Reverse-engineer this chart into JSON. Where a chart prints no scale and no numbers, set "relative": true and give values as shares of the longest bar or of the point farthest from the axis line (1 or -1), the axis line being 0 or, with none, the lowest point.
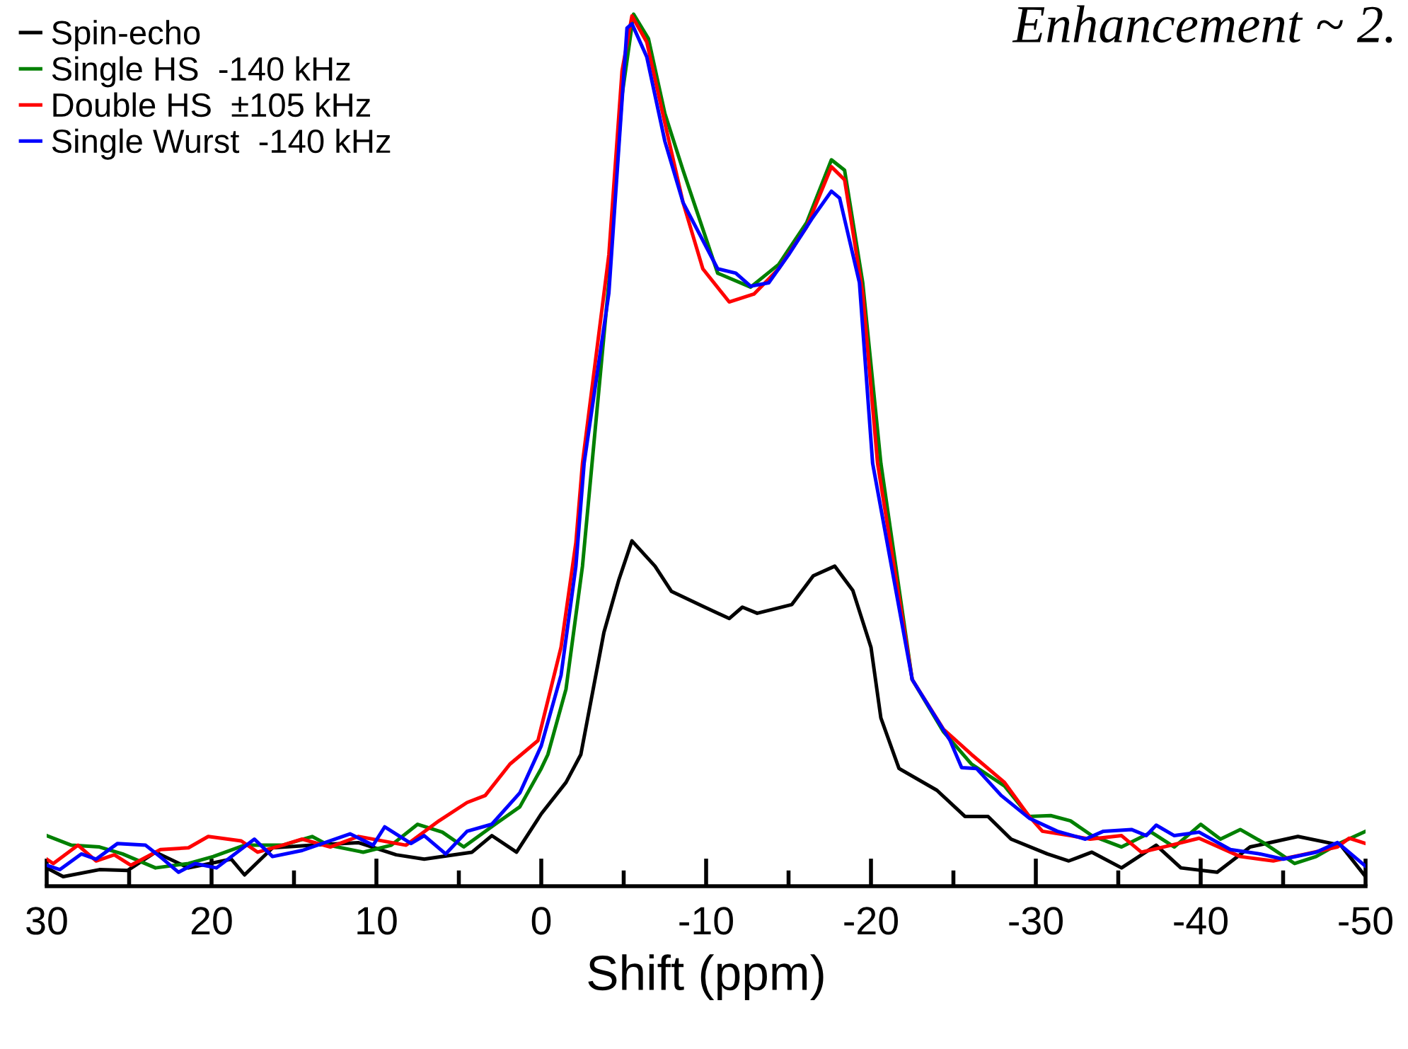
{
  "chart_data": {
    "type": "line",
    "relative": true,
    "xlabel": "Shift (ppm)",
    "annotations": [
      "Enhancement ~ 2."
    ],
    "xlim": [
      30,
      -50
    ],
    "xticks": [
      30,
      {
        "value": 25,
        "label": null
      },
      20,
      {
        "value": 15,
        "label": null
      },
      10,
      {
        "value": 5,
        "label": null
      },
      0,
      {
        "value": -5,
        "label": null
      },
      -10,
      {
        "value": -15,
        "label": null
      },
      -20,
      {
        "value": -25,
        "label": null
      },
      -30,
      {
        "value": -35,
        "label": null
      },
      -40,
      {
        "value": -45,
        "label": null
      },
      -50
    ],
    "legend": "top left",
    "grid": false,
    "marker": "none",
    "line_style": "solid",
    "series": [
      {
        "name": "Spin-echo",
        "color": "#000000",
        "x": [
          30,
          29.0,
          26.8,
          25.1,
          23.4,
          21.4,
          18.8,
          18.0,
          16.3,
          13.9,
          11.1,
          8.8,
          7.1,
          4.2,
          3.0,
          1.5,
          0.0,
          -1.5,
          -2.4,
          -3.8,
          -4.7,
          -5.5,
          -6.9,
          -7.9,
          -9.8,
          -11.4,
          -12.2,
          -13.1,
          -15.2,
          -16.5,
          -17.8,
          -18.9,
          -20.0,
          -20.6,
          -21.7,
          -24.0,
          -25.7,
          -27.1,
          -28.5,
          -30.7,
          -32.0,
          -33.4,
          -35.2,
          -37.3,
          -38.8,
          -41.0,
          -43.0,
          -45.9,
          -48.5,
          -50
        ],
        "values": [
          0.021,
          0.011,
          0.019,
          0.018,
          0.039,
          0.021,
          0.031,
          0.013,
          0.044,
          0.047,
          0.05,
          0.036,
          0.031,
          0.039,
          0.058,
          0.039,
          0.083,
          0.119,
          0.151,
          0.291,
          0.351,
          0.396,
          0.367,
          0.338,
          0.321,
          0.307,
          0.32,
          0.313,
          0.323,
          0.356,
          0.367,
          0.339,
          0.274,
          0.193,
          0.135,
          0.11,
          0.08,
          0.08,
          0.054,
          0.037,
          0.029,
          0.039,
          0.021,
          0.047,
          0.021,
          0.016,
          0.045,
          0.057,
          0.047,
          0.011
        ]
      },
      {
        "name": "Single HS  -140 kHz",
        "color": "#008000",
        "x": [
          30,
          28.5,
          26.8,
          25.4,
          23.4,
          21.4,
          19.9,
          18.0,
          15.7,
          13.9,
          12.9,
          10.8,
          9.1,
          7.5,
          6.0,
          4.7,
          2.8,
          1.3,
          0.0,
          -0.4,
          -1.5,
          -2.5,
          -4.1,
          -4.9,
          -5.6,
          -6.5,
          -7.5,
          -8.6,
          -10.7,
          -12.7,
          -14.4,
          -16.1,
          -17.6,
          -18.4,
          -19.5,
          -20.6,
          -22.5,
          -24.4,
          -26.1,
          -28.1,
          -29.6,
          -30.9,
          -32.1,
          -33.4,
          -35.2,
          -37.0,
          -38.4,
          -40.0,
          -41.2,
          -42.4,
          -43.8,
          -45.7,
          -47.0,
          -48.5,
          -50
        ],
        "values": [
          0.058,
          0.047,
          0.045,
          0.037,
          0.021,
          0.026,
          0.034,
          0.047,
          0.047,
          0.057,
          0.047,
          0.039,
          0.047,
          0.071,
          0.062,
          0.045,
          0.071,
          0.091,
          0.135,
          0.151,
          0.226,
          0.367,
          0.692,
          0.907,
          1.0,
          0.972,
          0.886,
          0.821,
          0.703,
          0.687,
          0.713,
          0.761,
          0.833,
          0.821,
          0.692,
          0.485,
          0.237,
          0.177,
          0.14,
          0.115,
          0.08,
          0.081,
          0.075,
          0.058,
          0.045,
          0.062,
          0.045,
          0.071,
          0.054,
          0.065,
          0.05,
          0.026,
          0.034,
          0.05,
          0.063
        ]
      },
      {
        "name": "Double HS  ±105 kHz",
        "color": "#ff0000",
        "x": [
          30,
          29.6,
          28.1,
          27.0,
          25.9,
          24.9,
          23.1,
          21.4,
          20.2,
          18.2,
          17.2,
          15.7,
          14.5,
          12.8,
          11.1,
          8.2,
          6.2,
          4.5,
          3.4,
          1.9,
          0.2,
          -1.2,
          -2.1,
          -2.5,
          -4.1,
          -4.9,
          -5.5,
          -6.4,
          -7.5,
          -8.6,
          -9.8,
          -11.4,
          -12.9,
          -14.4,
          -16.1,
          -17.6,
          -18.4,
          -19.5,
          -20.4,
          -22.5,
          -24.4,
          -26.1,
          -28.1,
          -29.6,
          -30.4,
          -32.1,
          -33.3,
          -35.2,
          -36.4,
          -38.2,
          -39.9,
          -42.4,
          -44.4,
          -46.4,
          -48.3,
          -49.0,
          -50
        ],
        "values": [
          0.031,
          0.026,
          0.047,
          0.029,
          0.036,
          0.024,
          0.042,
          0.044,
          0.057,
          0.052,
          0.039,
          0.047,
          0.054,
          0.045,
          0.057,
          0.047,
          0.075,
          0.096,
          0.104,
          0.14,
          0.167,
          0.274,
          0.394,
          0.485,
          0.724,
          0.935,
          0.998,
          0.968,
          0.875,
          0.784,
          0.708,
          0.67,
          0.679,
          0.708,
          0.756,
          0.825,
          0.81,
          0.68,
          0.485,
          0.237,
          0.18,
          0.151,
          0.119,
          0.08,
          0.063,
          0.058,
          0.054,
          0.058,
          0.039,
          0.047,
          0.055,
          0.034,
          0.029,
          0.037,
          0.045,
          0.055,
          0.049
        ]
      },
      {
        "name": "Single Wurst  -140 kHz",
        "color": "#0000ff",
        "x": [
          30,
          29.2,
          27.9,
          27.0,
          25.7,
          24.0,
          23.0,
          22.0,
          21.0,
          19.7,
          17.4,
          16.3,
          14.5,
          11.6,
          10.2,
          9.5,
          7.9,
          7.1,
          5.8,
          4.5,
          3.0,
          1.3,
          0.0,
          -1.2,
          -2.1,
          -2.6,
          -4.1,
          -5.2,
          -5.5,
          -6.4,
          -7.5,
          -8.6,
          -10.7,
          -11.8,
          -12.7,
          -13.8,
          -15.0,
          -16.4,
          -17.6,
          -18.1,
          -19.3,
          -20.1,
          -22.5,
          -24.8,
          -25.5,
          -26.4,
          -27.9,
          -29.6,
          -31.3,
          -33.0,
          -34.1,
          -35.8,
          -36.7,
          -37.3,
          -38.4,
          -39.9,
          -41.8,
          -43.6,
          -45.0,
          -47.0,
          -48.3,
          -50
        ],
        "values": [
          0.024,
          0.019,
          0.037,
          0.031,
          0.049,
          0.047,
          0.032,
          0.016,
          0.026,
          0.021,
          0.054,
          0.034,
          0.041,
          0.06,
          0.047,
          0.068,
          0.049,
          0.058,
          0.037,
          0.063,
          0.071,
          0.107,
          0.161,
          0.242,
          0.367,
          0.485,
          0.68,
          0.984,
          0.989,
          0.951,
          0.854,
          0.784,
          0.708,
          0.703,
          0.688,
          0.692,
          0.724,
          0.765,
          0.797,
          0.789,
          0.692,
          0.485,
          0.237,
          0.167,
          0.136,
          0.135,
          0.104,
          0.078,
          0.063,
          0.054,
          0.063,
          0.065,
          0.058,
          0.07,
          0.058,
          0.062,
          0.042,
          0.037,
          0.031,
          0.039,
          0.05,
          0.023
        ]
      }
    ]
  }
}
